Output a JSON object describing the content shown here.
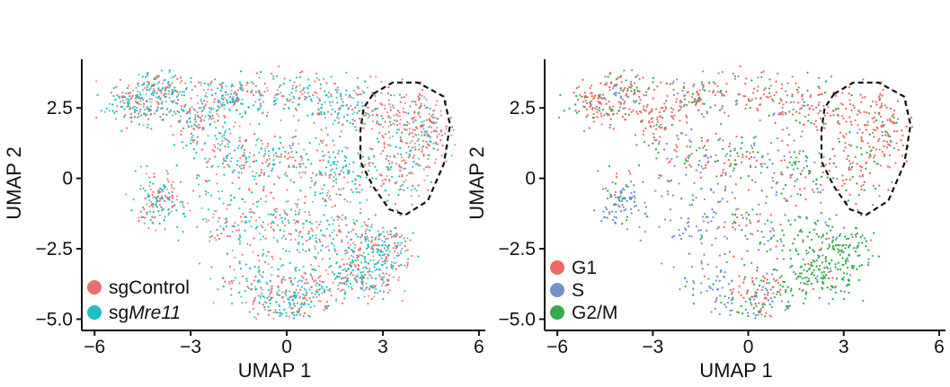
{
  "chart_data": [
    {
      "type": "scatter",
      "xlabel": "UMAP 1",
      "ylabel": "UMAP 2",
      "xlim": [
        -6.4,
        6.2
      ],
      "ylim": [
        -5.4,
        4.1
      ],
      "xticks": [
        -6,
        -3,
        0,
        3,
        6
      ],
      "yticks": [
        -5.0,
        -2.5,
        0,
        2.5
      ],
      "xtick_labels": [
        "−6",
        "−3",
        "0",
        "3",
        "6"
      ],
      "ytick_labels": [
        "−5.0",
        "−2.5",
        "0",
        "2.5"
      ],
      "grid": false,
      "legend_position": "bottom-left",
      "series": [
        {
          "name": "sgControl",
          "color": "#e8706c"
        },
        {
          "name": "sgMre11",
          "name_prefix": "sg",
          "name_italic": "Mre11",
          "color": "#1fbcc3"
        }
      ],
      "outline": {
        "style": "dashed",
        "points": [
          [
            2.7,
            3.0
          ],
          [
            3.3,
            3.4
          ],
          [
            4.1,
            3.4
          ],
          [
            4.9,
            2.9
          ],
          [
            5.1,
            1.9
          ],
          [
            4.9,
            0.5
          ],
          [
            4.4,
            -0.8
          ],
          [
            3.7,
            -1.3
          ],
          [
            3.2,
            -1.1
          ],
          [
            2.7,
            -0.3
          ],
          [
            2.3,
            0.6
          ],
          [
            2.3,
            1.7
          ],
          [
            2.4,
            2.5
          ]
        ]
      }
    },
    {
      "type": "scatter",
      "xlabel": "UMAP 1",
      "ylabel": "UMAP 2",
      "xlim": [
        -6.4,
        6.2
      ],
      "ylim": [
        -5.4,
        4.1
      ],
      "xticks": [
        -6,
        -3,
        0,
        3,
        6
      ],
      "yticks": [
        -5.0,
        -2.5,
        0,
        2.5
      ],
      "xtick_labels": [
        "−6",
        "−3",
        "0",
        "3",
        "6"
      ],
      "ytick_labels": [
        "−5.0",
        "−2.5",
        "0",
        "2.5"
      ],
      "grid": false,
      "legend_position": "bottom-left",
      "series": [
        {
          "name": "G1",
          "color": "#ec6a64"
        },
        {
          "name": "S",
          "color": "#7391cc"
        },
        {
          "name": "G2/M",
          "color": "#35ab4b"
        }
      ],
      "outline": {
        "style": "dashed",
        "points": [
          [
            2.7,
            3.0
          ],
          [
            3.3,
            3.4
          ],
          [
            4.1,
            3.4
          ],
          [
            4.9,
            2.9
          ],
          [
            5.1,
            1.9
          ],
          [
            4.9,
            0.5
          ],
          [
            4.4,
            -0.8
          ],
          [
            3.7,
            -1.3
          ],
          [
            3.2,
            -1.1
          ],
          [
            2.7,
            -0.3
          ],
          [
            2.3,
            0.6
          ],
          [
            2.3,
            1.7
          ],
          [
            2.4,
            2.5
          ]
        ]
      }
    }
  ]
}
